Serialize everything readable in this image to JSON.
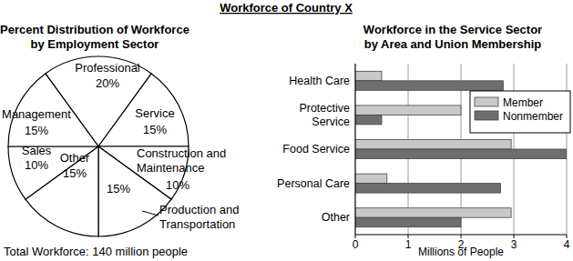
{
  "title": "Workforce of Country X",
  "chart_data": [
    {
      "type": "pie",
      "title": "Percent Distribution of Workforce\nby Employment Sector",
      "categories": [
        "Professional",
        "Service",
        "Construction and\nMaintenance",
        "Production and\nTransportation",
        "Other",
        "Sales",
        "Management"
      ],
      "values": [
        20,
        15,
        10,
        15,
        15,
        10,
        15
      ],
      "value_labels": [
        "20%",
        "15%",
        "10%",
        "15%",
        "15%",
        "10%",
        "15%"
      ],
      "data_labels": true,
      "color": "#ffffff",
      "annotation": "Total Workforce: 140 million people"
    },
    {
      "type": "bar",
      "title": "Workforce in the Service Sector\nby Area and Union Membership",
      "orientation": "horizontal",
      "categories": [
        "Health Care",
        "Protective\nService",
        "Food Service",
        "Personal Care",
        "Other"
      ],
      "series": [
        {
          "name": "Member",
          "color": "#c8c8c8",
          "values": [
            0.5,
            2,
            2.95,
            0.6,
            2.95
          ]
        },
        {
          "name": "Nonmember",
          "color": "#6e6e6e",
          "values": [
            2.8,
            0.5,
            4,
            2.75,
            2
          ]
        }
      ],
      "xlim": [
        0,
        4
      ],
      "xticks": [
        0,
        1,
        2,
        3,
        4
      ],
      "xlabel": "Millions of People",
      "grid": true,
      "legend": "upper right"
    }
  ]
}
